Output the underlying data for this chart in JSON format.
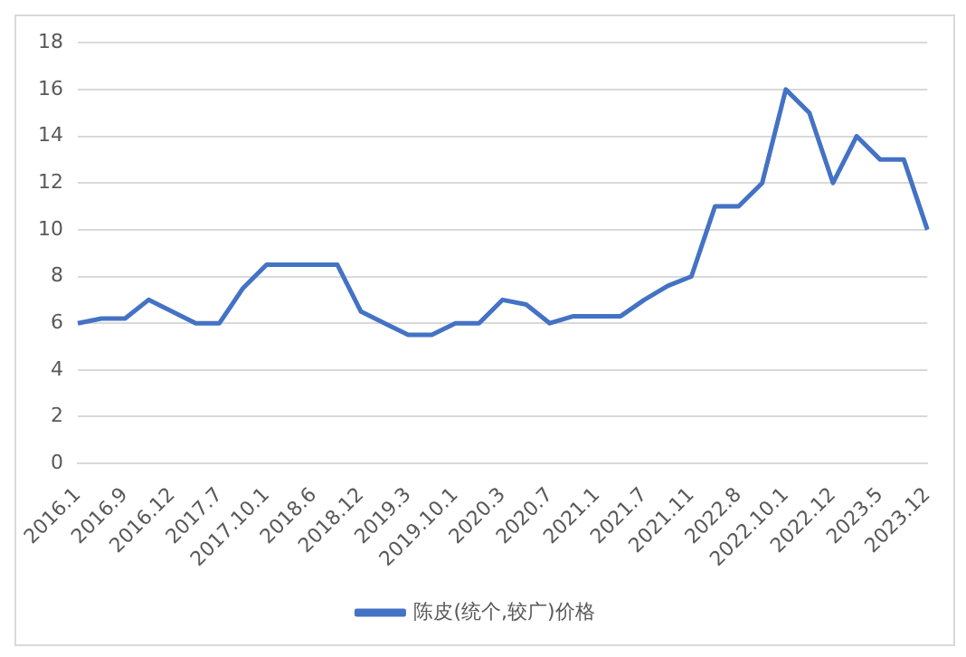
{
  "chart_data": {
    "type": "line",
    "categories": [
      "2016.1",
      null,
      "2016.9",
      null,
      "2016.12",
      null,
      "2017.7",
      null,
      "2017.10.1",
      null,
      "2018.6",
      null,
      "2018.12",
      null,
      "2019.3",
      null,
      "2019.10.1",
      null,
      "2020.3",
      null,
      "2020.7",
      null,
      "2021.1",
      null,
      "2021.7",
      null,
      "2021.11",
      null,
      "2022.8",
      null,
      "2022.10.1",
      null,
      "2022.12",
      null,
      "2023.5",
      null,
      "2023.12"
    ],
    "series": [
      {
        "name": "陈皮(统个,较广)价格",
        "color": "#4472c4",
        "values": [
          6,
          6.2,
          6.2,
          7,
          6.5,
          6,
          6,
          7.5,
          8.5,
          8.5,
          8.5,
          8.5,
          6.5,
          6,
          5.5,
          5.5,
          6,
          6,
          7,
          6.8,
          6,
          6.3,
          6.3,
          6.3,
          7,
          7.6,
          8,
          11,
          11,
          12,
          16,
          15,
          12,
          14,
          13,
          13,
          10
        ]
      }
    ],
    "ylim": [
      0,
      18
    ],
    "yticks": [
      0,
      2,
      4,
      6,
      8,
      10,
      12,
      14,
      16,
      18
    ],
    "grid": "y",
    "legend": "bottom",
    "marker": "none",
    "line_style": "solid"
  }
}
